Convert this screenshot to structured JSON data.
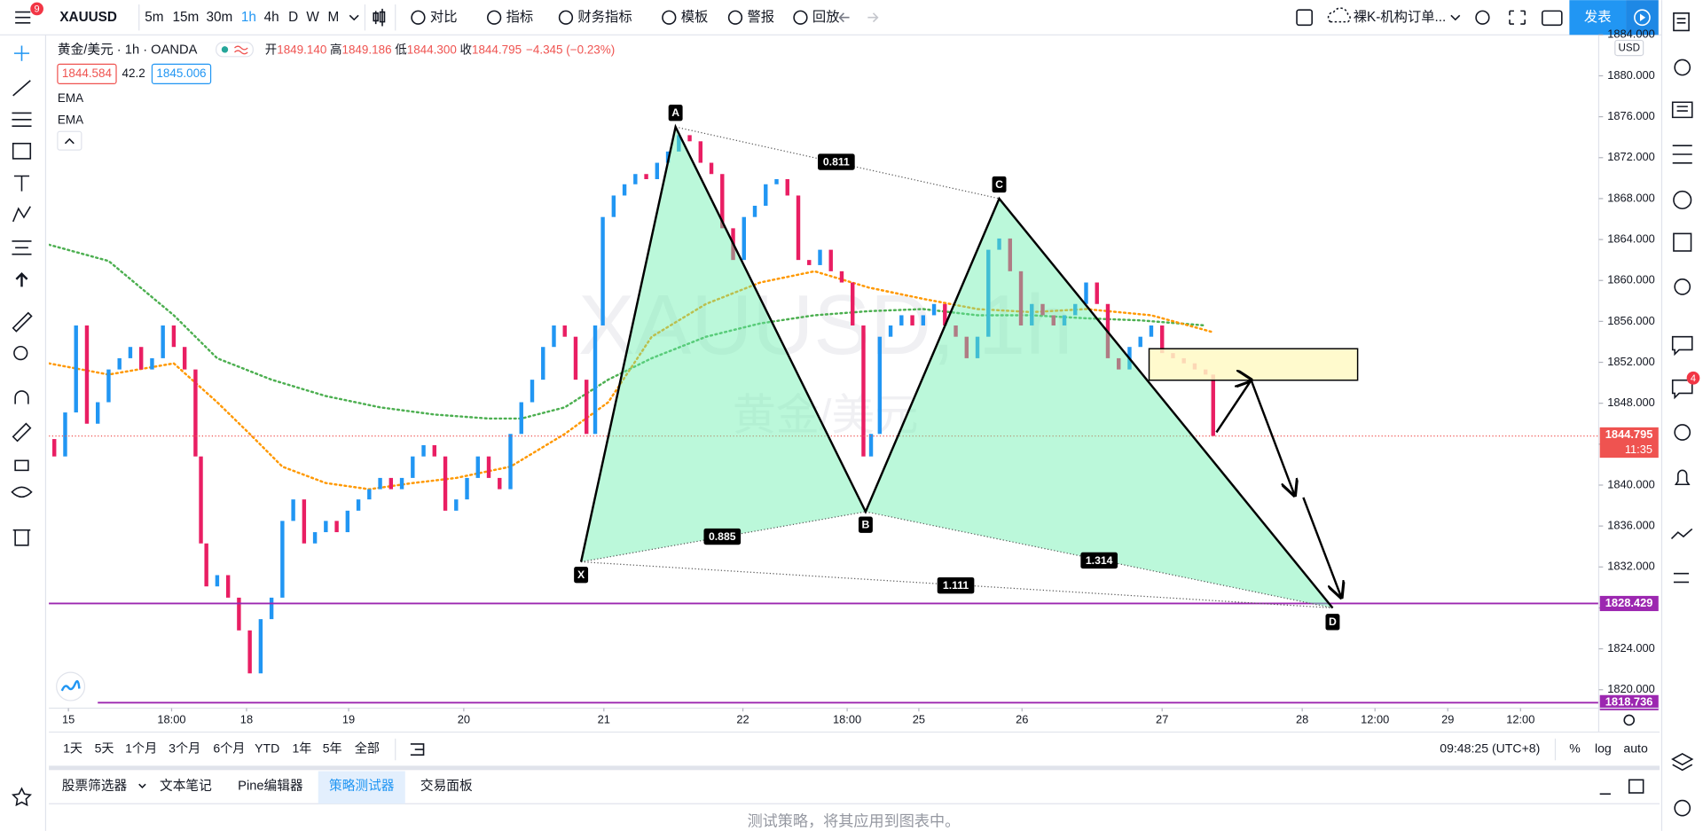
{
  "toolbar": {
    "badge": "9",
    "symbol": "XAUUSD",
    "intervals": [
      "5m",
      "15m",
      "30m",
      "1h",
      "4h",
      "D",
      "W",
      "M"
    ],
    "buttons": [
      "对比",
      "指标",
      "财务指标",
      "模板",
      "警报",
      "回放"
    ],
    "layout": "裸K-机构订单...",
    "publish": "发表"
  },
  "legend": {
    "symbol": "黄金/美元 · 1h · OANDA",
    "ohlc": [
      {
        "label": "开",
        "value": "1849.140"
      },
      {
        "label": "高",
        "value": "1849.186"
      },
      {
        "label": "低",
        "value": "1844.300"
      },
      {
        "label": "收",
        "value": "1844.795"
      }
    ],
    "change": "−4.345 (−0.23%)",
    "bid": "1844.584",
    "spread": "42.2",
    "ask": "1845.006",
    "indicators": [
      "EMA",
      "EMA"
    ]
  },
  "chart_data": {
    "type": "candlestick",
    "watermark": "XAUUSD, 1h",
    "watermark_subtitle": "黄金/美元",
    "currency": "USD",
    "up_color": "#2196f3",
    "down_color": "#e91e63",
    "xlim": [
      1,
      286.4
    ],
    "ylim": [
      1818.2,
      1884.0
    ],
    "xticks": [
      {
        "value": 4.6,
        "label": "15"
      },
      {
        "value": 23.6,
        "label": "18:00"
      },
      {
        "value": 37.4,
        "label": "18"
      },
      {
        "value": 56.2,
        "label": "19"
      },
      {
        "value": 77.4,
        "label": "20"
      },
      {
        "value": 103.2,
        "label": "21"
      },
      {
        "value": 128.8,
        "label": "22"
      },
      {
        "value": 148,
        "label": "18:00"
      },
      {
        "value": 161.2,
        "label": "25"
      },
      {
        "value": 180.2,
        "label": "26"
      },
      {
        "value": 206,
        "label": "27"
      },
      {
        "value": 231.8,
        "label": "28"
      },
      {
        "value": 245.2,
        "label": "12:00"
      },
      {
        "value": 258.6,
        "label": "29"
      },
      {
        "value": 272,
        "label": "12:00"
      }
    ],
    "yticks": [
      {
        "value": 1820,
        "label": "1820.000"
      },
      {
        "value": 1824,
        "label": "1824.000"
      },
      {
        "value": 1828,
        "label": "1828.000"
      },
      {
        "value": 1832,
        "label": "1832.000"
      },
      {
        "value": 1836,
        "label": "1836.000"
      },
      {
        "value": 1840,
        "label": "1840.000"
      },
      {
        "value": 1844,
        "label": "1844.000"
      },
      {
        "value": 1848,
        "label": "1848.000"
      },
      {
        "value": 1852,
        "label": "1852.000"
      },
      {
        "value": 1856,
        "label": "1856.000"
      },
      {
        "value": 1860,
        "label": "1860.000"
      },
      {
        "value": 1864,
        "label": "1864.000"
      },
      {
        "value": 1868,
        "label": "1868.000"
      },
      {
        "value": 1872,
        "label": "1872.000"
      },
      {
        "value": 1876,
        "label": "1876.000"
      },
      {
        "value": 1880,
        "label": "1880.000"
      },
      {
        "value": 1884,
        "label": "1884.000"
      }
    ],
    "candles": {
      "x": [
        2,
        4,
        6,
        8,
        10,
        12,
        14,
        16,
        18,
        20,
        22,
        24,
        26,
        28,
        29,
        30,
        32,
        34,
        36,
        38,
        40,
        42,
        44,
        46,
        48,
        50,
        52,
        54,
        56,
        58,
        60,
        62,
        64,
        66,
        68,
        70,
        72,
        74,
        76,
        78,
        80,
        82,
        84,
        86,
        88,
        90,
        92,
        94,
        96,
        98,
        100,
        101.6,
        103,
        105,
        107,
        109,
        111,
        113,
        115,
        117,
        119,
        121,
        123,
        125,
        127,
        129,
        131,
        133,
        135,
        137,
        139,
        141,
        143,
        145,
        147,
        149,
        151,
        152.4,
        154,
        156,
        158,
        160,
        162,
        164,
        166,
        168,
        170,
        172,
        174,
        176,
        178,
        180,
        182,
        184,
        186,
        188,
        190,
        192,
        194,
        196,
        198,
        200,
        202,
        204,
        206,
        208,
        210,
        212,
        214,
        215.4
      ],
      "open": [
        1844.5,
        1842.8,
        1847.1,
        1855.6,
        1846.0,
        1848.1,
        1851.3,
        1852.4,
        1853.5,
        1851.3,
        1852.4,
        1855.6,
        1853.5,
        1851.3,
        1842.8,
        1834.3,
        1830.1,
        1831.2,
        1829.0,
        1825.8,
        1821.6,
        1826.9,
        1829.0,
        1836.5,
        1838.6,
        1834.3,
        1835.4,
        1836.5,
        1835.4,
        1837.5,
        1838.6,
        1839.6,
        1840.7,
        1839.6,
        1840.7,
        1842.8,
        1843.9,
        1842.8,
        1837.5,
        1838.6,
        1840.7,
        1842.8,
        1840.7,
        1839.6,
        1845.0,
        1848.1,
        1850.3,
        1853.5,
        1855.6,
        1854.5,
        1850.3,
        1845.0,
        1855.6,
        1866.2,
        1868.3,
        1869.4,
        1870.4,
        1869.9,
        1871.5,
        1872.6,
        1874.2,
        1873.6,
        1871.5,
        1870.4,
        1865.1,
        1862.0,
        1866.2,
        1867.3,
        1869.4,
        1869.9,
        1868.3,
        1862.0,
        1861.5,
        1863.0,
        1860.9,
        1859.8,
        1855.6,
        1842.8,
        1845.0,
        1854.5,
        1855.6,
        1856.6,
        1855.6,
        1856.6,
        1857.7,
        1855.6,
        1854.5,
        1852.4,
        1854.5,
        1863.0,
        1864.1,
        1860.9,
        1855.6,
        1857.7,
        1856.6,
        1855.6,
        1856.6,
        1857.7,
        1859.8,
        1857.7,
        1852.4,
        1851.3,
        1853.5,
        1854.5,
        1855.6,
        1852.9,
        1852.4,
        1851.9,
        1851.3,
        1850.8
      ],
      "close": [
        1842.8,
        1847.1,
        1855.6,
        1846.0,
        1848.1,
        1851.3,
        1852.4,
        1853.5,
        1851.3,
        1852.4,
        1855.6,
        1853.5,
        1851.3,
        1842.8,
        1834.3,
        1830.1,
        1831.2,
        1829.0,
        1825.8,
        1821.6,
        1826.9,
        1829.0,
        1836.5,
        1838.6,
        1834.3,
        1835.4,
        1836.5,
        1835.4,
        1837.5,
        1838.6,
        1839.6,
        1840.7,
        1839.6,
        1840.7,
        1842.8,
        1843.9,
        1842.8,
        1837.5,
        1838.6,
        1840.7,
        1842.8,
        1840.7,
        1839.6,
        1845.0,
        1848.1,
        1850.3,
        1853.5,
        1855.6,
        1854.5,
        1850.3,
        1845.0,
        1855.6,
        1866.2,
        1868.3,
        1869.4,
        1870.4,
        1869.9,
        1871.5,
        1872.6,
        1874.2,
        1873.6,
        1871.5,
        1870.4,
        1865.1,
        1862.0,
        1866.2,
        1867.3,
        1869.4,
        1869.9,
        1868.3,
        1862.0,
        1861.5,
        1863.0,
        1860.9,
        1859.8,
        1855.6,
        1842.8,
        1845.0,
        1854.5,
        1855.6,
        1856.6,
        1855.6,
        1856.6,
        1857.7,
        1855.6,
        1854.5,
        1852.4,
        1854.5,
        1863.0,
        1864.1,
        1860.9,
        1855.6,
        1857.7,
        1856.6,
        1855.6,
        1856.6,
        1857.7,
        1859.8,
        1857.7,
        1852.4,
        1851.3,
        1853.5,
        1854.5,
        1855.6,
        1852.9,
        1852.4,
        1851.9,
        1851.3,
        1850.8,
        1844.8
      ]
    },
    "series": [
      {
        "name": "EMA",
        "color": "#4caf50",
        "x": [
          1,
          12,
          24,
          32,
          42,
          52,
          62,
          72,
          82,
          88,
          96,
          104,
          112,
          122,
          132,
          142,
          152,
          162,
          172,
          182,
          192,
          202,
          214
        ],
        "values": [
          1863.5,
          1861.9,
          1856.6,
          1852.4,
          1850.3,
          1848.7,
          1847.6,
          1846.9,
          1846.5,
          1846.5,
          1847.6,
          1850.3,
          1852.4,
          1854.5,
          1855.8,
          1856.6,
          1857.0,
          1857.2,
          1856.6,
          1856.6,
          1856.3,
          1856.1,
          1855.6
        ]
      },
      {
        "name": "EMA",
        "color": "#ff9800",
        "x": [
          1,
          12,
          24,
          32,
          38,
          44,
          52,
          60,
          68,
          76,
          86,
          96,
          104,
          112,
          122,
          132,
          142,
          152,
          162,
          172,
          182,
          192,
          204,
          215
        ],
        "values": [
          1851.9,
          1850.8,
          1851.9,
          1848.1,
          1845.0,
          1841.8,
          1840.2,
          1839.6,
          1840.2,
          1840.7,
          1841.8,
          1845.0,
          1848.1,
          1854.5,
          1857.7,
          1859.8,
          1860.9,
          1859.3,
          1858.2,
          1857.2,
          1856.9,
          1857.2,
          1856.6,
          1855.0
        ]
      }
    ],
    "pattern": {
      "points": [
        {
          "label": "X",
          "x": 99,
          "price": 1832.5
        },
        {
          "label": "A",
          "x": 116.4,
          "price": 1875.0
        },
        {
          "label": "B",
          "x": 151.4,
          "price": 1837.4
        },
        {
          "label": "C",
          "x": 176,
          "price": 1868.0
        },
        {
          "label": "D",
          "x": 237.4,
          "price": 1828.0
        }
      ],
      "ratios": [
        0.811,
        0.885,
        1.314,
        1.111
      ]
    },
    "hlines": [
      {
        "value": 1828.429,
        "color": "#9c27b0"
      },
      {
        "value": 1818.736,
        "color": "#9c27b0"
      }
    ],
    "last_price": 1844.795,
    "last_price_color": "#ef5350",
    "countdown": "11:35"
  },
  "bottom_bar": {
    "ranges": [
      "1天",
      "5天",
      "1个月",
      "3个月",
      "6个月",
      "YTD",
      "1年",
      "5年",
      "全部"
    ],
    "clock": "09:48:25 (UTC+8)",
    "scale_options": [
      "%",
      "log",
      "auto"
    ]
  },
  "panel": {
    "tabs": [
      "股票筛选器",
      "文本笔记",
      "Pine编辑器",
      "策略测试器",
      "交易面板"
    ],
    "message": "测试策略，将其应用到图表中。",
    "chat_badge": "4"
  }
}
